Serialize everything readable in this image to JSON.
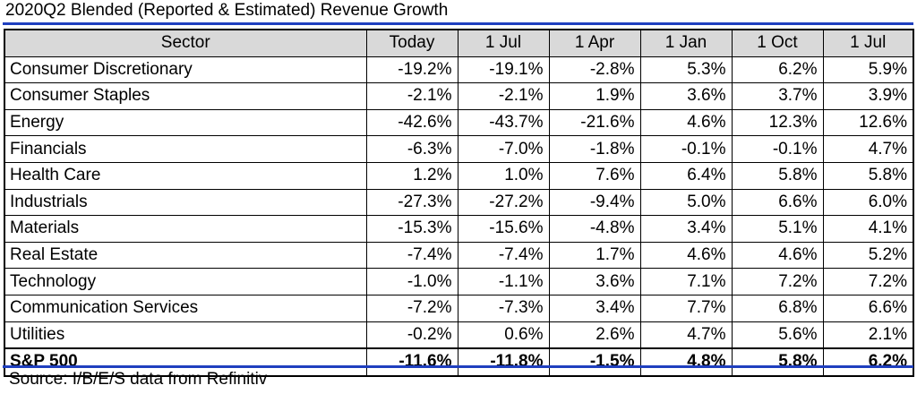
{
  "title": "2020Q2 Blended (Reported & Estimated) Revenue Growth",
  "source": "Source: I/B/E/S data from Refinitiv",
  "colors": {
    "rule": "#1f3fbf",
    "header_bg": "#d9d9d9"
  },
  "headers": [
    "Sector",
    "Today",
    "1 Jul",
    "1 Apr",
    "1 Jan",
    "1 Oct",
    "1 Jul"
  ],
  "rows": [
    {
      "sector": "Consumer Discretionary",
      "values": [
        "-19.2%",
        "-19.1%",
        "-2.8%",
        "5.3%",
        "6.2%",
        "5.9%"
      ]
    },
    {
      "sector": "Consumer Staples",
      "values": [
        "-2.1%",
        "-2.1%",
        "1.9%",
        "3.6%",
        "3.7%",
        "3.9%"
      ]
    },
    {
      "sector": "Energy",
      "values": [
        "-42.6%",
        "-43.7%",
        "-21.6%",
        "4.6%",
        "12.3%",
        "12.6%"
      ]
    },
    {
      "sector": "Financials",
      "values": [
        "-6.3%",
        "-7.0%",
        "-1.8%",
        "-0.1%",
        "-0.1%",
        "4.7%"
      ]
    },
    {
      "sector": "Health Care",
      "values": [
        "1.2%",
        "1.0%",
        "7.6%",
        "6.4%",
        "5.8%",
        "5.8%"
      ]
    },
    {
      "sector": "Industrials",
      "values": [
        "-27.3%",
        "-27.2%",
        "-9.4%",
        "5.0%",
        "6.6%",
        "6.0%"
      ]
    },
    {
      "sector": "Materials",
      "values": [
        "-15.3%",
        "-15.6%",
        "-4.8%",
        "3.4%",
        "5.1%",
        "4.1%"
      ]
    },
    {
      "sector": "Real Estate",
      "values": [
        "-7.4%",
        "-7.4%",
        "1.7%",
        "4.6%",
        "4.6%",
        "5.2%"
      ]
    },
    {
      "sector": "Technology",
      "values": [
        "-1.0%",
        "-1.1%",
        "3.6%",
        "7.1%",
        "7.2%",
        "7.2%"
      ]
    },
    {
      "sector": "Communication Services",
      "values": [
        "-7.2%",
        "-7.3%",
        "3.4%",
        "7.7%",
        "6.8%",
        "6.6%"
      ]
    },
    {
      "sector": "Utilities",
      "values": [
        "-0.2%",
        "0.6%",
        "2.6%",
        "4.7%",
        "5.6%",
        "2.1%"
      ]
    }
  ],
  "total": {
    "sector": "S&P 500",
    "values": [
      "-11.6%",
      "-11.8%",
      "-1.5%",
      "4.8%",
      "5.8%",
      "6.2%"
    ]
  }
}
